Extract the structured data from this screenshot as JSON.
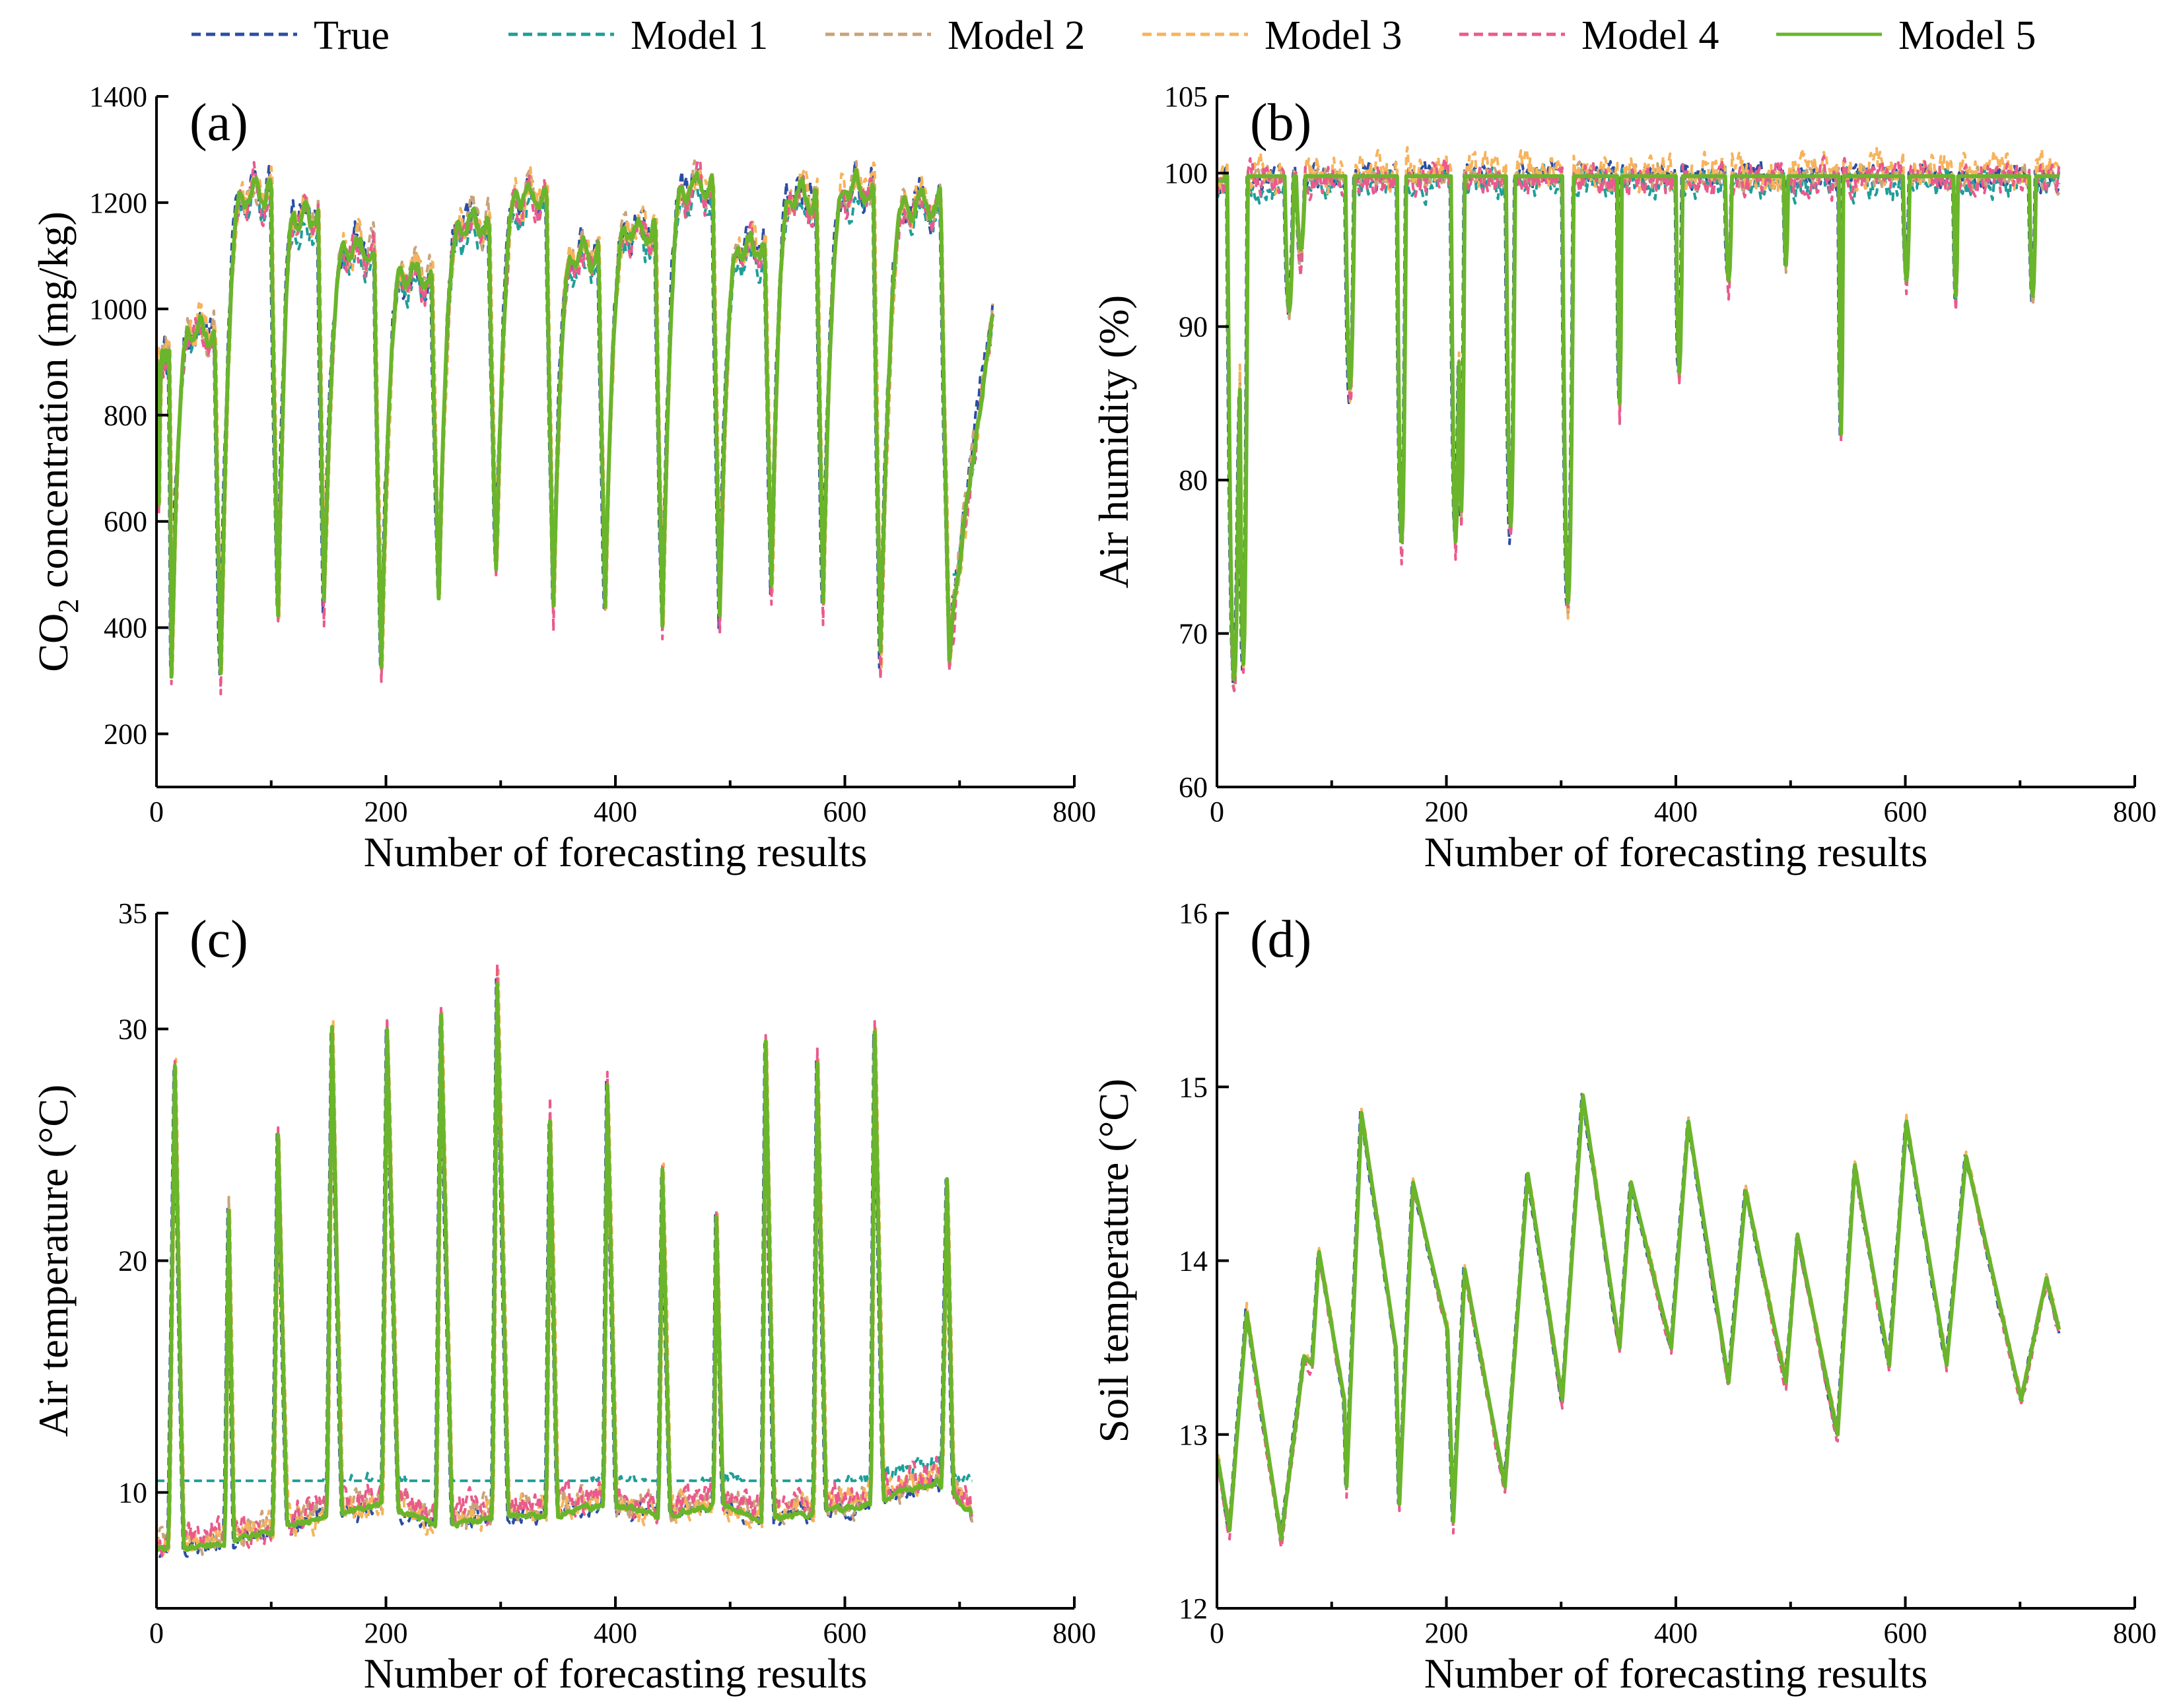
{
  "legend": [
    {
      "name": "True",
      "color": "#2b4ea3",
      "dash": true
    },
    {
      "name": "Model 1",
      "color": "#1f9e99",
      "dash": true
    },
    {
      "name": "Model 2",
      "color": "#c9a27a",
      "dash": true
    },
    {
      "name": "Model 3",
      "color": "#f7b35c",
      "dash": true
    },
    {
      "name": "Model 4",
      "color": "#ea5a8c",
      "dash": true
    },
    {
      "name": "Model 5",
      "color": "#6ab52b",
      "dash": false
    }
  ],
  "chart_data": [
    {
      "type": "line",
      "panel_label": "(a)",
      "xlabel": "Number of forecasting results",
      "ylabel": "CO2 concentration (mg/kg)",
      "ylabel_parts": {
        "pre": "CO",
        "sub": "2",
        "post": " concentration (mg/kg)"
      },
      "xlim": [
        0,
        800
      ],
      "ylim": [
        100,
        1400
      ],
      "xticks": [
        0,
        200,
        400,
        600,
        800
      ],
      "yticks": [
        200,
        400,
        600,
        800,
        1000,
        1200,
        1400
      ],
      "n_points": 730,
      "baseline": {
        "type": "cycles",
        "start": 900,
        "end": 1020,
        "shape": 2.2,
        "cycles": [
          [
            0,
            12,
            920,
            400
          ],
          [
            12,
            55,
            960,
            320
          ],
          [
            55,
            105,
            1220,
            310
          ],
          [
            105,
            145,
            1175,
            420
          ],
          [
            145,
            195,
            1110,
            450
          ],
          [
            195,
            245,
            1065,
            330
          ],
          [
            245,
            295,
            1160,
            460
          ],
          [
            295,
            345,
            1210,
            500
          ],
          [
            345,
            390,
            1100,
            440
          ],
          [
            390,
            440,
            1150,
            440
          ],
          [
            440,
            490,
            1230,
            400
          ],
          [
            490,
            535,
            1115,
            430
          ],
          [
            535,
            580,
            1215,
            470
          ],
          [
            580,
            630,
            1225,
            450
          ],
          [
            630,
            690,
            1200,
            350
          ]
        ]
      },
      "series": [
        {
          "name": "True",
          "noise": 25,
          "bias": 0,
          "scale": 1.0,
          "lag": 0
        },
        {
          "name": "Model 1",
          "noise": 18,
          "bias": -15,
          "scale": 0.95,
          "lag": 1,
          "floor": 500
        },
        {
          "name": "Model 2",
          "noise": 22,
          "bias": 5,
          "scale": 0.98,
          "lag": 1
        },
        {
          "name": "Model 3",
          "noise": 24,
          "bias": 8,
          "scale": 1.0,
          "lag": 2
        },
        {
          "name": "Model 4",
          "noise": 24,
          "bias": -12,
          "scale": 1.02,
          "lag": 1
        },
        {
          "name": "Model 5",
          "noise": 10,
          "bias": 0,
          "scale": 1.0,
          "lag": 1
        }
      ]
    },
    {
      "type": "line",
      "panel_label": "(b)",
      "xlabel": "Number of forecasting results",
      "ylabel": "Air humidity (%)",
      "xlim": [
        0,
        800
      ],
      "ylim": [
        60,
        105
      ],
      "xticks": [
        0,
        200,
        400,
        600,
        800
      ],
      "yticks": [
        60,
        70,
        80,
        90,
        100,
        105
      ],
      "n_points": 735,
      "baseline": {
        "type": "dips",
        "level": 99.8,
        "dips": [
          [
            14,
            6,
            67
          ],
          [
            22,
            4,
            68
          ],
          [
            62,
            4,
            91
          ],
          [
            72,
            4,
            95
          ],
          [
            115,
            4,
            86
          ],
          [
            160,
            4,
            76
          ],
          [
            207,
            4,
            76
          ],
          [
            212,
            3,
            78
          ],
          [
            255,
            4,
            77
          ],
          [
            305,
            5,
            72
          ],
          [
            350,
            2,
            85
          ],
          [
            402,
            3,
            87
          ],
          [
            445,
            3,
            93
          ],
          [
            495,
            2,
            94
          ],
          [
            543,
            2,
            83
          ],
          [
            600,
            3,
            93
          ],
          [
            643,
            2,
            92
          ],
          [
            710,
            3,
            92
          ]
        ]
      },
      "series": [
        {
          "name": "True",
          "noise": 0.6,
          "bias": 0,
          "scale": 1.0,
          "lag": 0
        },
        {
          "name": "Model 1",
          "noise": 0.7,
          "bias": -0.4,
          "scale": 0.95,
          "lag": 1
        },
        {
          "name": "Model 2",
          "noise": 0.6,
          "bias": -0.2,
          "scale": 1.0,
          "lag": 1
        },
        {
          "name": "Model 3",
          "noise": 0.9,
          "bias": 0.4,
          "scale": 1.0,
          "lag": 1
        },
        {
          "name": "Model 4",
          "noise": 0.8,
          "bias": -0.3,
          "scale": 1.04,
          "lag": 1
        },
        {
          "name": "Model 5",
          "noise": 0.0,
          "bias": 0,
          "scale": 1.0,
          "lag": 1
        }
      ]
    },
    {
      "type": "line",
      "panel_label": "(c)",
      "xlabel": "Number of forecasting results",
      "ylabel": "Air temperature (°C)",
      "xlim": [
        0,
        800
      ],
      "ylim": [
        5,
        35
      ],
      "xticks": [
        0,
        200,
        400,
        600,
        800
      ],
      "yticks": [
        10,
        20,
        30,
        35
      ],
      "n_points": 712,
      "baseline": {
        "type": "spikes",
        "level": 9.5,
        "spikes": [
          [
            15,
            28.5,
            5,
            7
          ],
          [
            62,
            22,
            3,
            4
          ],
          [
            105,
            25.5,
            4,
            7
          ],
          [
            152,
            30,
            4,
            8
          ],
          [
            200,
            30,
            4,
            9
          ],
          [
            247,
            30.5,
            4,
            9
          ],
          [
            296,
            32,
            4,
            9
          ],
          [
            342,
            26,
            3,
            6
          ],
          [
            392,
            27.5,
            3,
            7
          ],
          [
            440,
            24,
            3,
            6
          ],
          [
            487,
            22,
            2,
            5
          ],
          [
            530,
            29.5,
            3,
            7
          ],
          [
            575,
            28.5,
            3,
            7
          ],
          [
            625,
            30,
            3,
            7
          ],
          [
            688,
            23.5,
            4,
            5
          ]
        ],
        "lows": [
          [
            0,
            7.5
          ],
          [
            60,
            7.8
          ],
          [
            150,
            9.0
          ],
          [
            200,
            9.5
          ],
          [
            245,
            8.5
          ],
          [
            295,
            9.0
          ],
          [
            340,
            9.0
          ],
          [
            390,
            9.5
          ],
          [
            440,
            9.0
          ],
          [
            490,
            9.5
          ],
          [
            530,
            8.8
          ],
          [
            620,
            9.5
          ],
          [
            680,
            10.5
          ],
          [
            712,
            9.0
          ]
        ]
      },
      "series": [
        {
          "name": "True",
          "noise": 0.3,
          "bias": 0,
          "scale": 1.0,
          "lag": 0
        },
        {
          "name": "Model 1",
          "noise": 0.3,
          "bias": 0.8,
          "scale": 0.85,
          "lag": 1,
          "floor": 10.5
        },
        {
          "name": "Model 2",
          "noise": 0.5,
          "bias": 0.3,
          "scale": 0.98,
          "lag": 1
        },
        {
          "name": "Model 3",
          "noise": 0.5,
          "bias": 0.2,
          "scale": 1.0,
          "lag": 2
        },
        {
          "name": "Model 4",
          "noise": 0.5,
          "bias": 0.4,
          "scale": 1.0,
          "lag": 1
        },
        {
          "name": "Model 5",
          "noise": 0.1,
          "bias": 0,
          "scale": 1.0,
          "lag": 1
        }
      ]
    },
    {
      "type": "line",
      "panel_label": "(d)",
      "xlabel": "Number of forecasting results",
      "ylabel": "Soil temperature (°C)",
      "xlim": [
        0,
        800
      ],
      "ylim": [
        12,
        16
      ],
      "xticks": [
        0,
        200,
        400,
        600,
        800
      ],
      "yticks": [
        12,
        13,
        14,
        15,
        16
      ],
      "n_points": 735,
      "baseline": {
        "type": "knots",
        "knots": [
          [
            0,
            12.85
          ],
          [
            10,
            12.45
          ],
          [
            25,
            13.7
          ],
          [
            55,
            12.4
          ],
          [
            75,
            13.45
          ],
          [
            82,
            13.4
          ],
          [
            88,
            14.05
          ],
          [
            110,
            13.2
          ],
          [
            112,
            12.7
          ],
          [
            125,
            14.85
          ],
          [
            155,
            13.5
          ],
          [
            158,
            12.6
          ],
          [
            170,
            14.45
          ],
          [
            200,
            13.6
          ],
          [
            205,
            12.5
          ],
          [
            215,
            13.95
          ],
          [
            250,
            12.7
          ],
          [
            270,
            14.5
          ],
          [
            300,
            13.2
          ],
          [
            318,
            14.95
          ],
          [
            350,
            13.5
          ],
          [
            360,
            14.45
          ],
          [
            395,
            13.5
          ],
          [
            410,
            14.8
          ],
          [
            445,
            13.3
          ],
          [
            460,
            14.4
          ],
          [
            495,
            13.3
          ],
          [
            505,
            14.15
          ],
          [
            540,
            13.0
          ],
          [
            555,
            14.55
          ],
          [
            585,
            13.4
          ],
          [
            600,
            14.8
          ],
          [
            635,
            13.4
          ],
          [
            652,
            14.6
          ],
          [
            700,
            13.2
          ],
          [
            722,
            13.9
          ],
          [
            735,
            13.55
          ]
        ]
      },
      "series": [
        {
          "name": "True",
          "noise": 0.015,
          "bias": 0,
          "scale": 1.0,
          "lag": 0
        },
        {
          "name": "Model 1",
          "noise": 0.012,
          "bias": 0.0,
          "scale": 0.98,
          "lag": 1
        },
        {
          "name": "Model 2",
          "noise": 0.015,
          "bias": 0.01,
          "scale": 1.0,
          "lag": 1
        },
        {
          "name": "Model 3",
          "noise": 0.02,
          "bias": 0.02,
          "scale": 1.0,
          "lag": 1
        },
        {
          "name": "Model 4",
          "noise": 0.02,
          "bias": -0.03,
          "scale": 1.02,
          "lag": 1
        },
        {
          "name": "Model 5",
          "noise": 0.0,
          "bias": 0,
          "scale": 1.0,
          "lag": 1
        }
      ]
    }
  ]
}
